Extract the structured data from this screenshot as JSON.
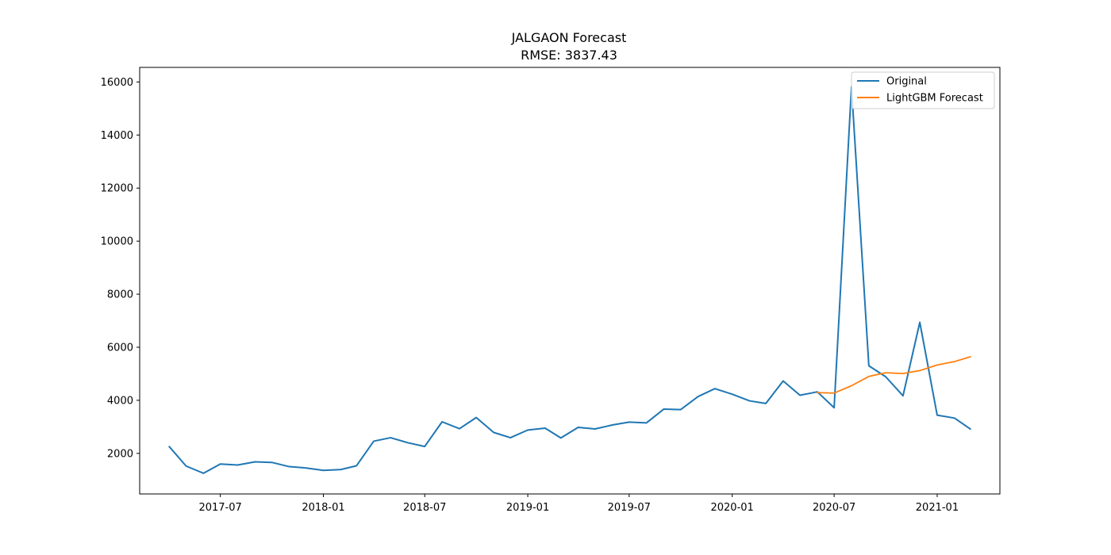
{
  "chart_data": {
    "type": "line",
    "title": "JALGAON Forecast",
    "subtitle": "RMSE: 3837.43",
    "xlabel": "",
    "ylabel": "",
    "x_ticks": [
      "2017-07",
      "2018-01",
      "2018-07",
      "2019-01",
      "2019-07",
      "2020-01",
      "2020-07",
      "2021-01"
    ],
    "y_ticks": [
      2000,
      4000,
      6000,
      8000,
      10000,
      12000,
      14000,
      16000
    ],
    "xlim": [
      "2017-02-07",
      "2021-04-23"
    ],
    "ylim": [
      470,
      16550
    ],
    "grid": false,
    "legend_position": "top-right",
    "series": [
      {
        "name": "Original",
        "color": "#1f77b4",
        "points": [
          [
            "2017-04-01",
            2250
          ],
          [
            "2017-05-01",
            1520
          ],
          [
            "2017-06-01",
            1250
          ],
          [
            "2017-07-01",
            1600
          ],
          [
            "2017-08-01",
            1560
          ],
          [
            "2017-09-01",
            1680
          ],
          [
            "2017-10-01",
            1660
          ],
          [
            "2017-11-01",
            1500
          ],
          [
            "2017-12-01",
            1450
          ],
          [
            "2018-01-01",
            1360
          ],
          [
            "2018-02-01",
            1390
          ],
          [
            "2018-03-01",
            1530
          ],
          [
            "2018-04-01",
            2460
          ],
          [
            "2018-05-01",
            2590
          ],
          [
            "2018-06-01",
            2400
          ],
          [
            "2018-07-01",
            2260
          ],
          [
            "2018-08-01",
            3190
          ],
          [
            "2018-09-01",
            2930
          ],
          [
            "2018-10-01",
            3350
          ],
          [
            "2018-11-01",
            2790
          ],
          [
            "2018-12-01",
            2590
          ],
          [
            "2019-01-01",
            2880
          ],
          [
            "2019-02-01",
            2950
          ],
          [
            "2019-03-01",
            2580
          ],
          [
            "2019-04-01",
            2980
          ],
          [
            "2019-05-01",
            2920
          ],
          [
            "2019-06-01",
            3070
          ],
          [
            "2019-07-01",
            3180
          ],
          [
            "2019-08-01",
            3150
          ],
          [
            "2019-09-01",
            3670
          ],
          [
            "2019-10-01",
            3650
          ],
          [
            "2019-11-01",
            4140
          ],
          [
            "2019-12-01",
            4440
          ],
          [
            "2020-01-01",
            4230
          ],
          [
            "2020-02-01",
            3980
          ],
          [
            "2020-03-01",
            3880
          ],
          [
            "2020-04-01",
            4730
          ],
          [
            "2020-05-01",
            4190
          ],
          [
            "2020-06-01",
            4320
          ],
          [
            "2020-07-01",
            3720
          ],
          [
            "2020-08-01",
            15820
          ],
          [
            "2020-09-01",
            5300
          ],
          [
            "2020-10-01",
            4890
          ],
          [
            "2020-11-01",
            4170
          ],
          [
            "2020-12-01",
            6940
          ],
          [
            "2021-01-01",
            3440
          ],
          [
            "2021-02-01",
            3330
          ],
          [
            "2021-03-01",
            2920
          ]
        ]
      },
      {
        "name": "LightGBM Forecast",
        "color": "#ff7f0e",
        "points": [
          [
            "2020-06-01",
            4290
          ],
          [
            "2020-07-01",
            4270
          ],
          [
            "2020-08-01",
            4550
          ],
          [
            "2020-09-01",
            4900
          ],
          [
            "2020-10-01",
            5040
          ],
          [
            "2020-11-01",
            5010
          ],
          [
            "2020-12-01",
            5120
          ],
          [
            "2021-01-01",
            5330
          ],
          [
            "2021-02-01",
            5460
          ],
          [
            "2021-03-01",
            5640
          ]
        ]
      }
    ]
  }
}
